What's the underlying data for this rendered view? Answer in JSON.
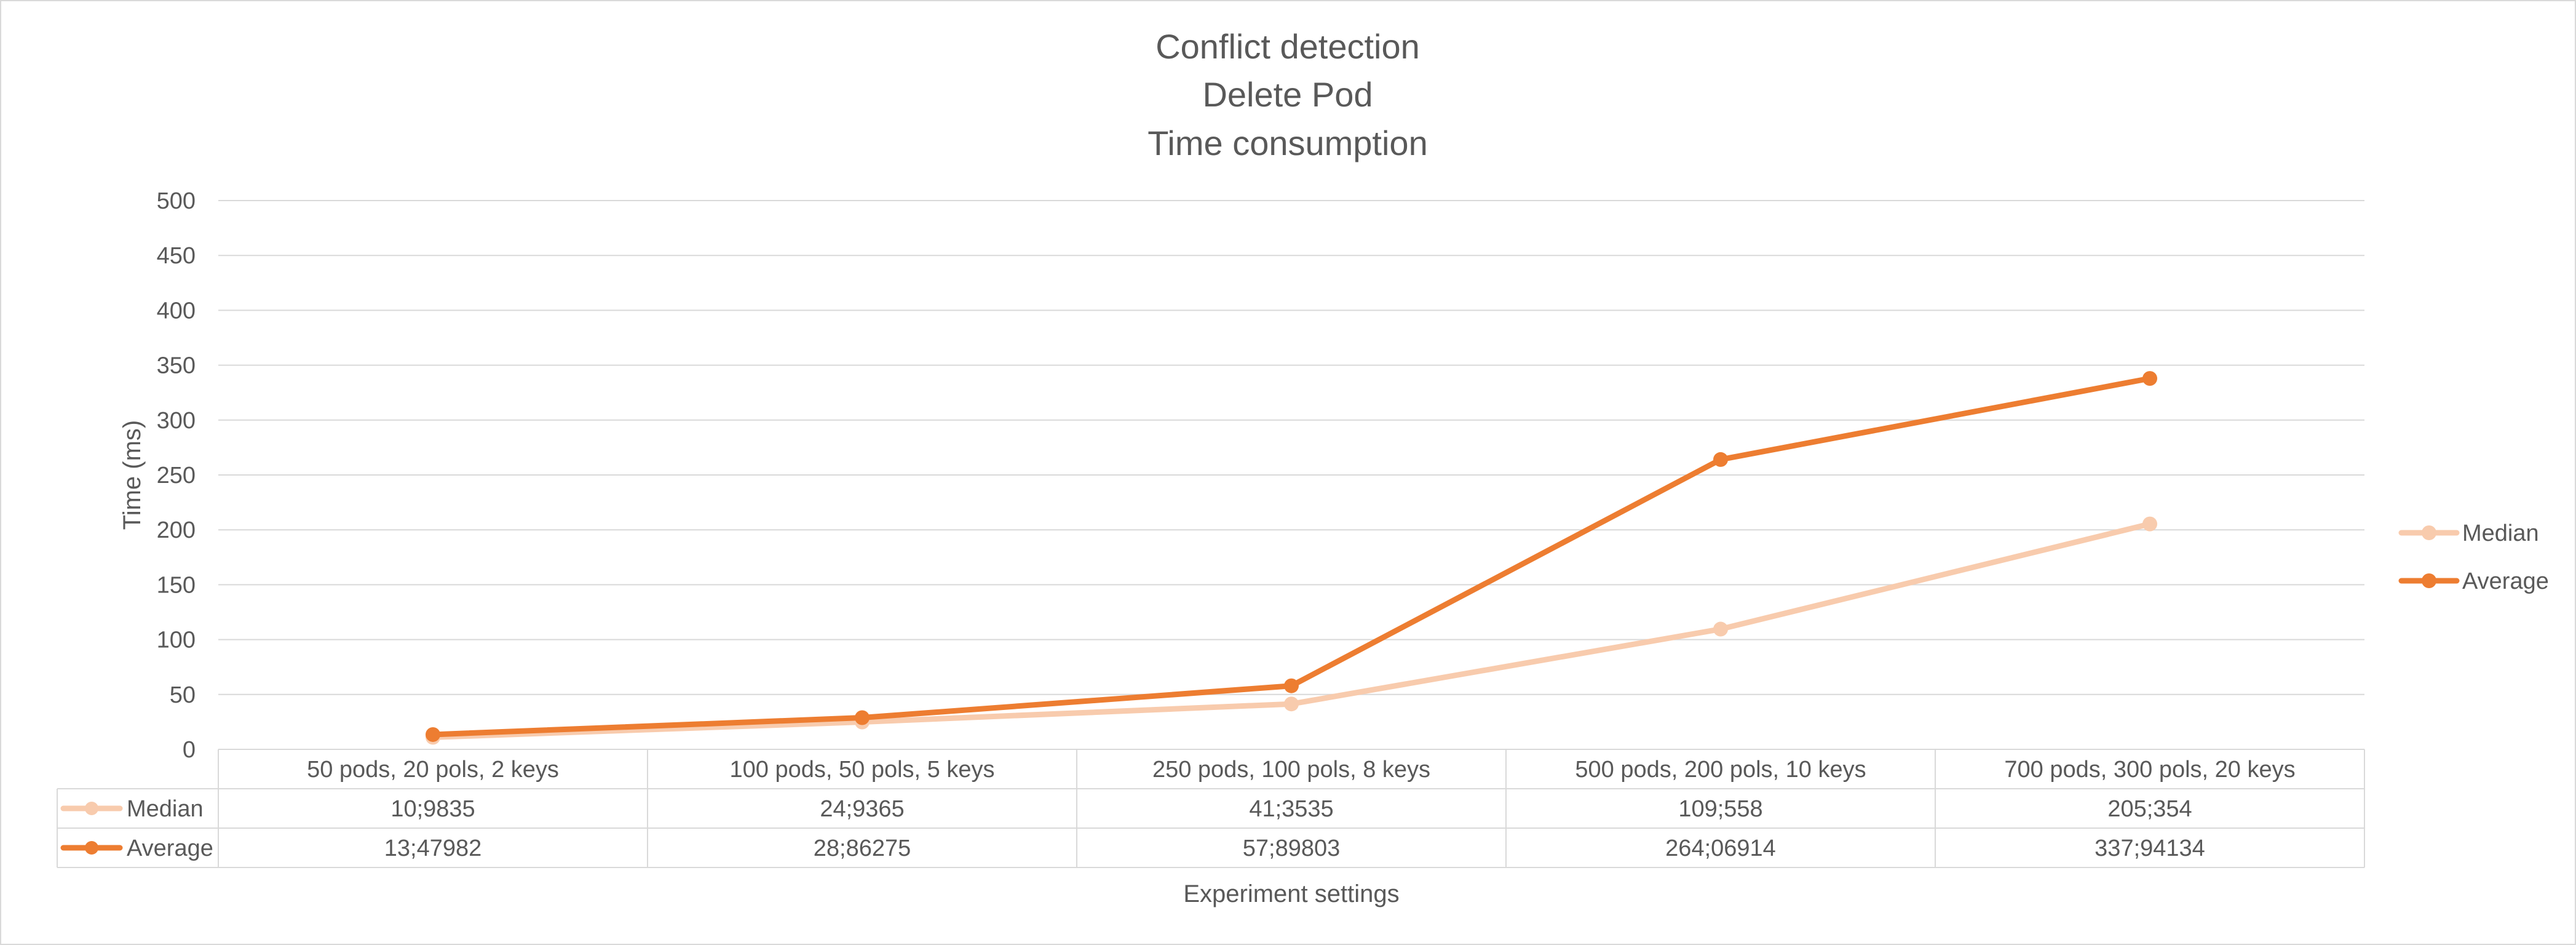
{
  "chart_data": {
    "type": "line",
    "title": [
      "Conflict detection",
      "Delete Pod",
      "Time consumption"
    ],
    "xlabel": "Experiment settings",
    "ylabel": "Time (ms)",
    "ylim": [
      0,
      500
    ],
    "yticks": [
      0,
      50,
      100,
      150,
      200,
      250,
      300,
      350,
      400,
      450,
      500
    ],
    "grid": true,
    "legend_position": "right",
    "categories": [
      "50 pods, 20 pols, 2 keys",
      "100 pods, 50 pols, 5 keys",
      "250 pods, 100 pols, 8 keys",
      "500 pods, 200 pols, 10 keys",
      "700 pods, 300 pols, 20 keys"
    ],
    "series": [
      {
        "name": "Median",
        "color": "#f8cbad",
        "values": [
          10.9835,
          24.9365,
          41.3535,
          109.558,
          205.354
        ],
        "labels": [
          "10;9835",
          "24;9365",
          "41;3535",
          "109;558",
          "205;354"
        ]
      },
      {
        "name": "Average",
        "color": "#ed7d31",
        "values": [
          13.47982,
          28.86275,
          57.89803,
          264.06914,
          337.94134
        ],
        "labels": [
          "13;47982",
          "28;86275",
          "57;89803",
          "264;06914",
          "337;94134"
        ]
      }
    ]
  }
}
